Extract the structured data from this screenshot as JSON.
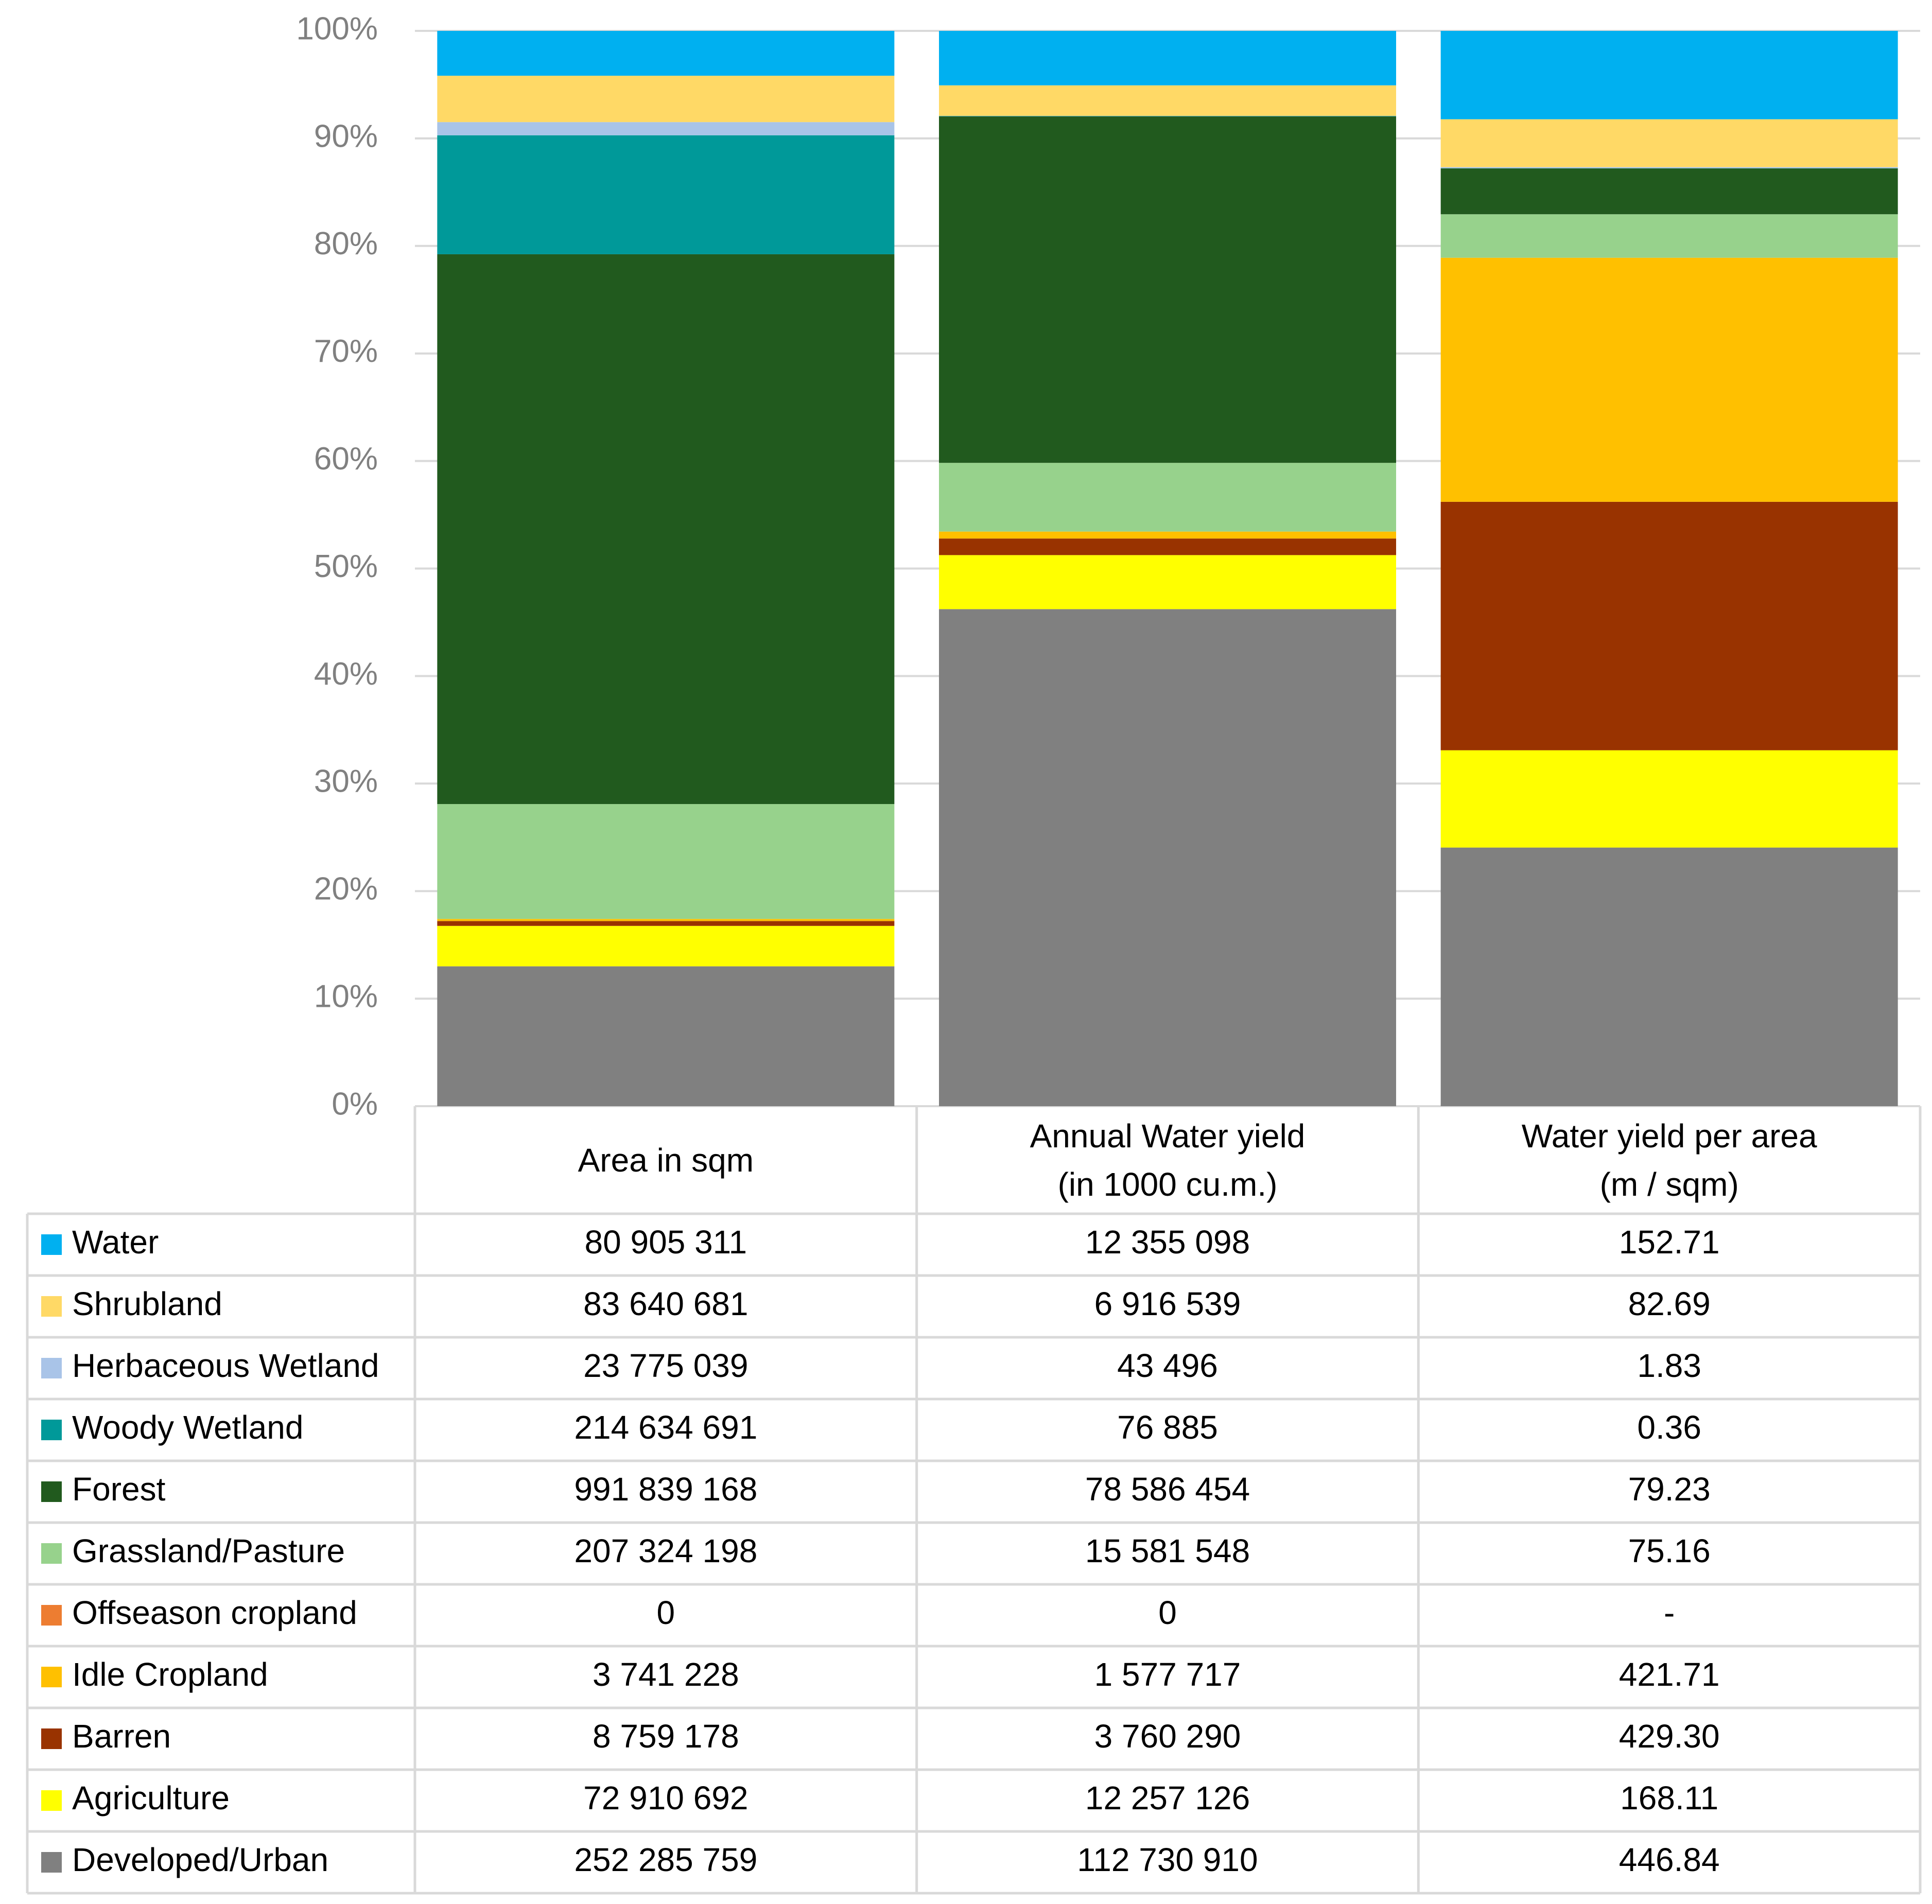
{
  "chart_data": {
    "type": "stacked100",
    "categories": [
      "Area in sqm",
      "Annual Water yield\n(in 1000 cu.m.)",
      "Water yield per area\n(m / sqm)"
    ],
    "ylim": [
      0,
      100
    ],
    "yticks": [
      {
        "value": 0,
        "label": "0%"
      },
      {
        "value": 10,
        "label": "10%"
      },
      {
        "value": 20,
        "label": "20%"
      },
      {
        "value": 30,
        "label": "30%"
      },
      {
        "value": 40,
        "label": "40%"
      },
      {
        "value": 50,
        "label": "50%"
      },
      {
        "value": 60,
        "label": "60%"
      },
      {
        "value": 70,
        "label": "70%"
      },
      {
        "value": 80,
        "label": "80%"
      },
      {
        "value": 90,
        "label": "90%"
      },
      {
        "value": 100,
        "label": "100%"
      }
    ],
    "grid": true,
    "series": [
      {
        "name": "Water",
        "color": "#00b0f0",
        "values": [
          80905311,
          12355098,
          152.71
        ],
        "value_labels": [
          "80 905 311",
          "12 355 098",
          "152.71"
        ]
      },
      {
        "name": "Shrubland",
        "color": "#ffd966",
        "values": [
          83640681,
          6916539,
          82.69
        ],
        "value_labels": [
          "83 640 681",
          "6 916 539",
          "82.69"
        ]
      },
      {
        "name": "Herbaceous Wetland",
        "color": "#a9c4e8",
        "values": [
          23775039,
          43496,
          1.83
        ],
        "value_labels": [
          "23 775 039",
          "43 496",
          "1.83"
        ]
      },
      {
        "name": "Woody Wetland",
        "color": "#009999",
        "values": [
          214634691,
          76885,
          0.36
        ],
        "value_labels": [
          "214 634 691",
          "76 885",
          "0.36"
        ]
      },
      {
        "name": "Forest",
        "color": "#215a1e",
        "values": [
          991839168,
          78586454,
          79.23
        ],
        "value_labels": [
          "991 839 168",
          "78 586 454",
          "79.23"
        ]
      },
      {
        "name": "Grassland/Pasture",
        "color": "#97d28c",
        "values": [
          207324198,
          15581548,
          75.16
        ],
        "value_labels": [
          "207 324 198",
          "15 581 548",
          "75.16"
        ]
      },
      {
        "name": "Offseason cropland",
        "color": "#ed7d31",
        "values": [
          0,
          0,
          null
        ],
        "value_labels": [
          "0",
          "0",
          "-"
        ]
      },
      {
        "name": "Idle Cropland",
        "color": "#ffc000",
        "values": [
          3741228,
          1577717,
          421.71
        ],
        "value_labels": [
          "3 741 228",
          "1 577 717",
          "421.71"
        ]
      },
      {
        "name": "Barren",
        "color": "#993300",
        "values": [
          8759178,
          3760290,
          429.3
        ],
        "value_labels": [
          "8 759 178",
          "3 760 290",
          "429.30"
        ]
      },
      {
        "name": "Agriculture",
        "color": "#ffff00",
        "values": [
          72910692,
          12257126,
          168.11
        ],
        "value_labels": [
          "72 910 692",
          "12 257 126",
          "168.11"
        ]
      },
      {
        "name": "Developed/Urban",
        "color": "#808080",
        "values": [
          252285759,
          112730910,
          446.84
        ],
        "value_labels": [
          "252 285 759",
          "112 730 910",
          "446.84"
        ]
      }
    ]
  }
}
